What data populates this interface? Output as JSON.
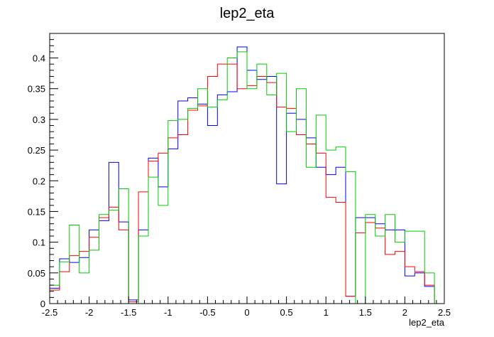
{
  "chart_data": {
    "type": "step-histogram",
    "title": "lep2_eta",
    "xlabel": "lep2_eta",
    "ylabel": "",
    "xlim": [
      -2.5,
      2.5
    ],
    "ylim": [
      0,
      0.44
    ],
    "bins": 40,
    "grid": false,
    "legend": "none",
    "x_ticks": [
      -2.5,
      -2,
      -1.5,
      -1,
      -0.5,
      0,
      0.5,
      1,
      1.5,
      2,
      2.5
    ],
    "x_tick_labels": [
      "-2.5",
      "-2",
      "-1.5",
      "-1",
      "-0.5",
      "0",
      "0.5",
      "1",
      "1.5",
      "2",
      "2.5"
    ],
    "y_ticks": [
      0,
      0.05,
      0.1,
      0.15,
      0.2,
      0.25,
      0.3,
      0.35,
      0.4
    ],
    "y_tick_labels": [
      "0",
      "0.05",
      "0.1",
      "0.15",
      "0.2",
      "0.25",
      "0.3",
      "0.35",
      "0.4"
    ],
    "series": [
      {
        "color": "#0000ff",
        "values": [
          0.025,
          0.073,
          0.067,
          0.075,
          0.12,
          0.135,
          0.23,
          0.133,
          0.006,
          0.12,
          0.237,
          0.19,
          0.252,
          0.33,
          0.335,
          0.325,
          0.29,
          0.34,
          0.345,
          0.418,
          0.38,
          0.365,
          0.37,
          0.195,
          0.31,
          0.3,
          0.27,
          0.222,
          0.21,
          0.222,
          0.012,
          0.14,
          0.14,
          0.13,
          0.12,
          0.12,
          0.045,
          0.05,
          0.028,
          0.0
        ]
      },
      {
        "color": "#ff0000",
        "values": [
          0.022,
          0.052,
          0.078,
          0.085,
          0.108,
          0.14,
          0.157,
          0.12,
          0.003,
          0.182,
          0.232,
          0.245,
          0.27,
          0.275,
          0.315,
          0.322,
          0.37,
          0.39,
          0.39,
          0.35,
          0.355,
          0.37,
          0.36,
          0.32,
          0.318,
          0.275,
          0.26,
          0.245,
          0.173,
          0.165,
          0.012,
          0.115,
          0.132,
          0.123,
          0.08,
          0.085,
          0.06,
          0.052,
          0.03,
          0.0
        ]
      },
      {
        "color": "#00cc00",
        "values": [
          0.03,
          0.068,
          0.128,
          0.05,
          0.087,
          0.145,
          0.152,
          0.187,
          0.0,
          0.11,
          0.206,
          0.16,
          0.298,
          0.3,
          0.318,
          0.35,
          0.32,
          0.332,
          0.4,
          0.41,
          0.35,
          0.39,
          0.34,
          0.375,
          0.28,
          0.35,
          0.222,
          0.307,
          0.25,
          0.255,
          0.215,
          0.0,
          0.145,
          0.11,
          0.145,
          0.1,
          0.118,
          0.118,
          0.05,
          0.0
        ]
      }
    ]
  }
}
